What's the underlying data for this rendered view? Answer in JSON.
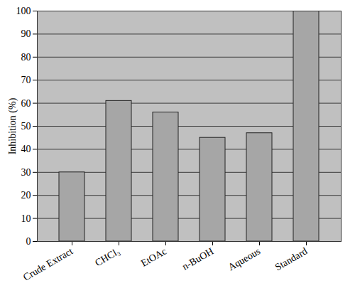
{
  "chart_data": {
    "type": "bar",
    "categories": [
      "Crude Extract",
      "CHCl₃",
      "EtOAc",
      "n-BuOH",
      "Aqueous",
      "Standard"
    ],
    "values": [
      30,
      61,
      56,
      45,
      47,
      100
    ],
    "color": "#a6a6a6",
    "y_label": "Inhibition (%)",
    "ylim": [
      0,
      100
    ],
    "yticks": [
      0,
      10,
      20,
      30,
      40,
      50,
      60,
      70,
      80,
      90,
      100
    ],
    "grid": true
  }
}
